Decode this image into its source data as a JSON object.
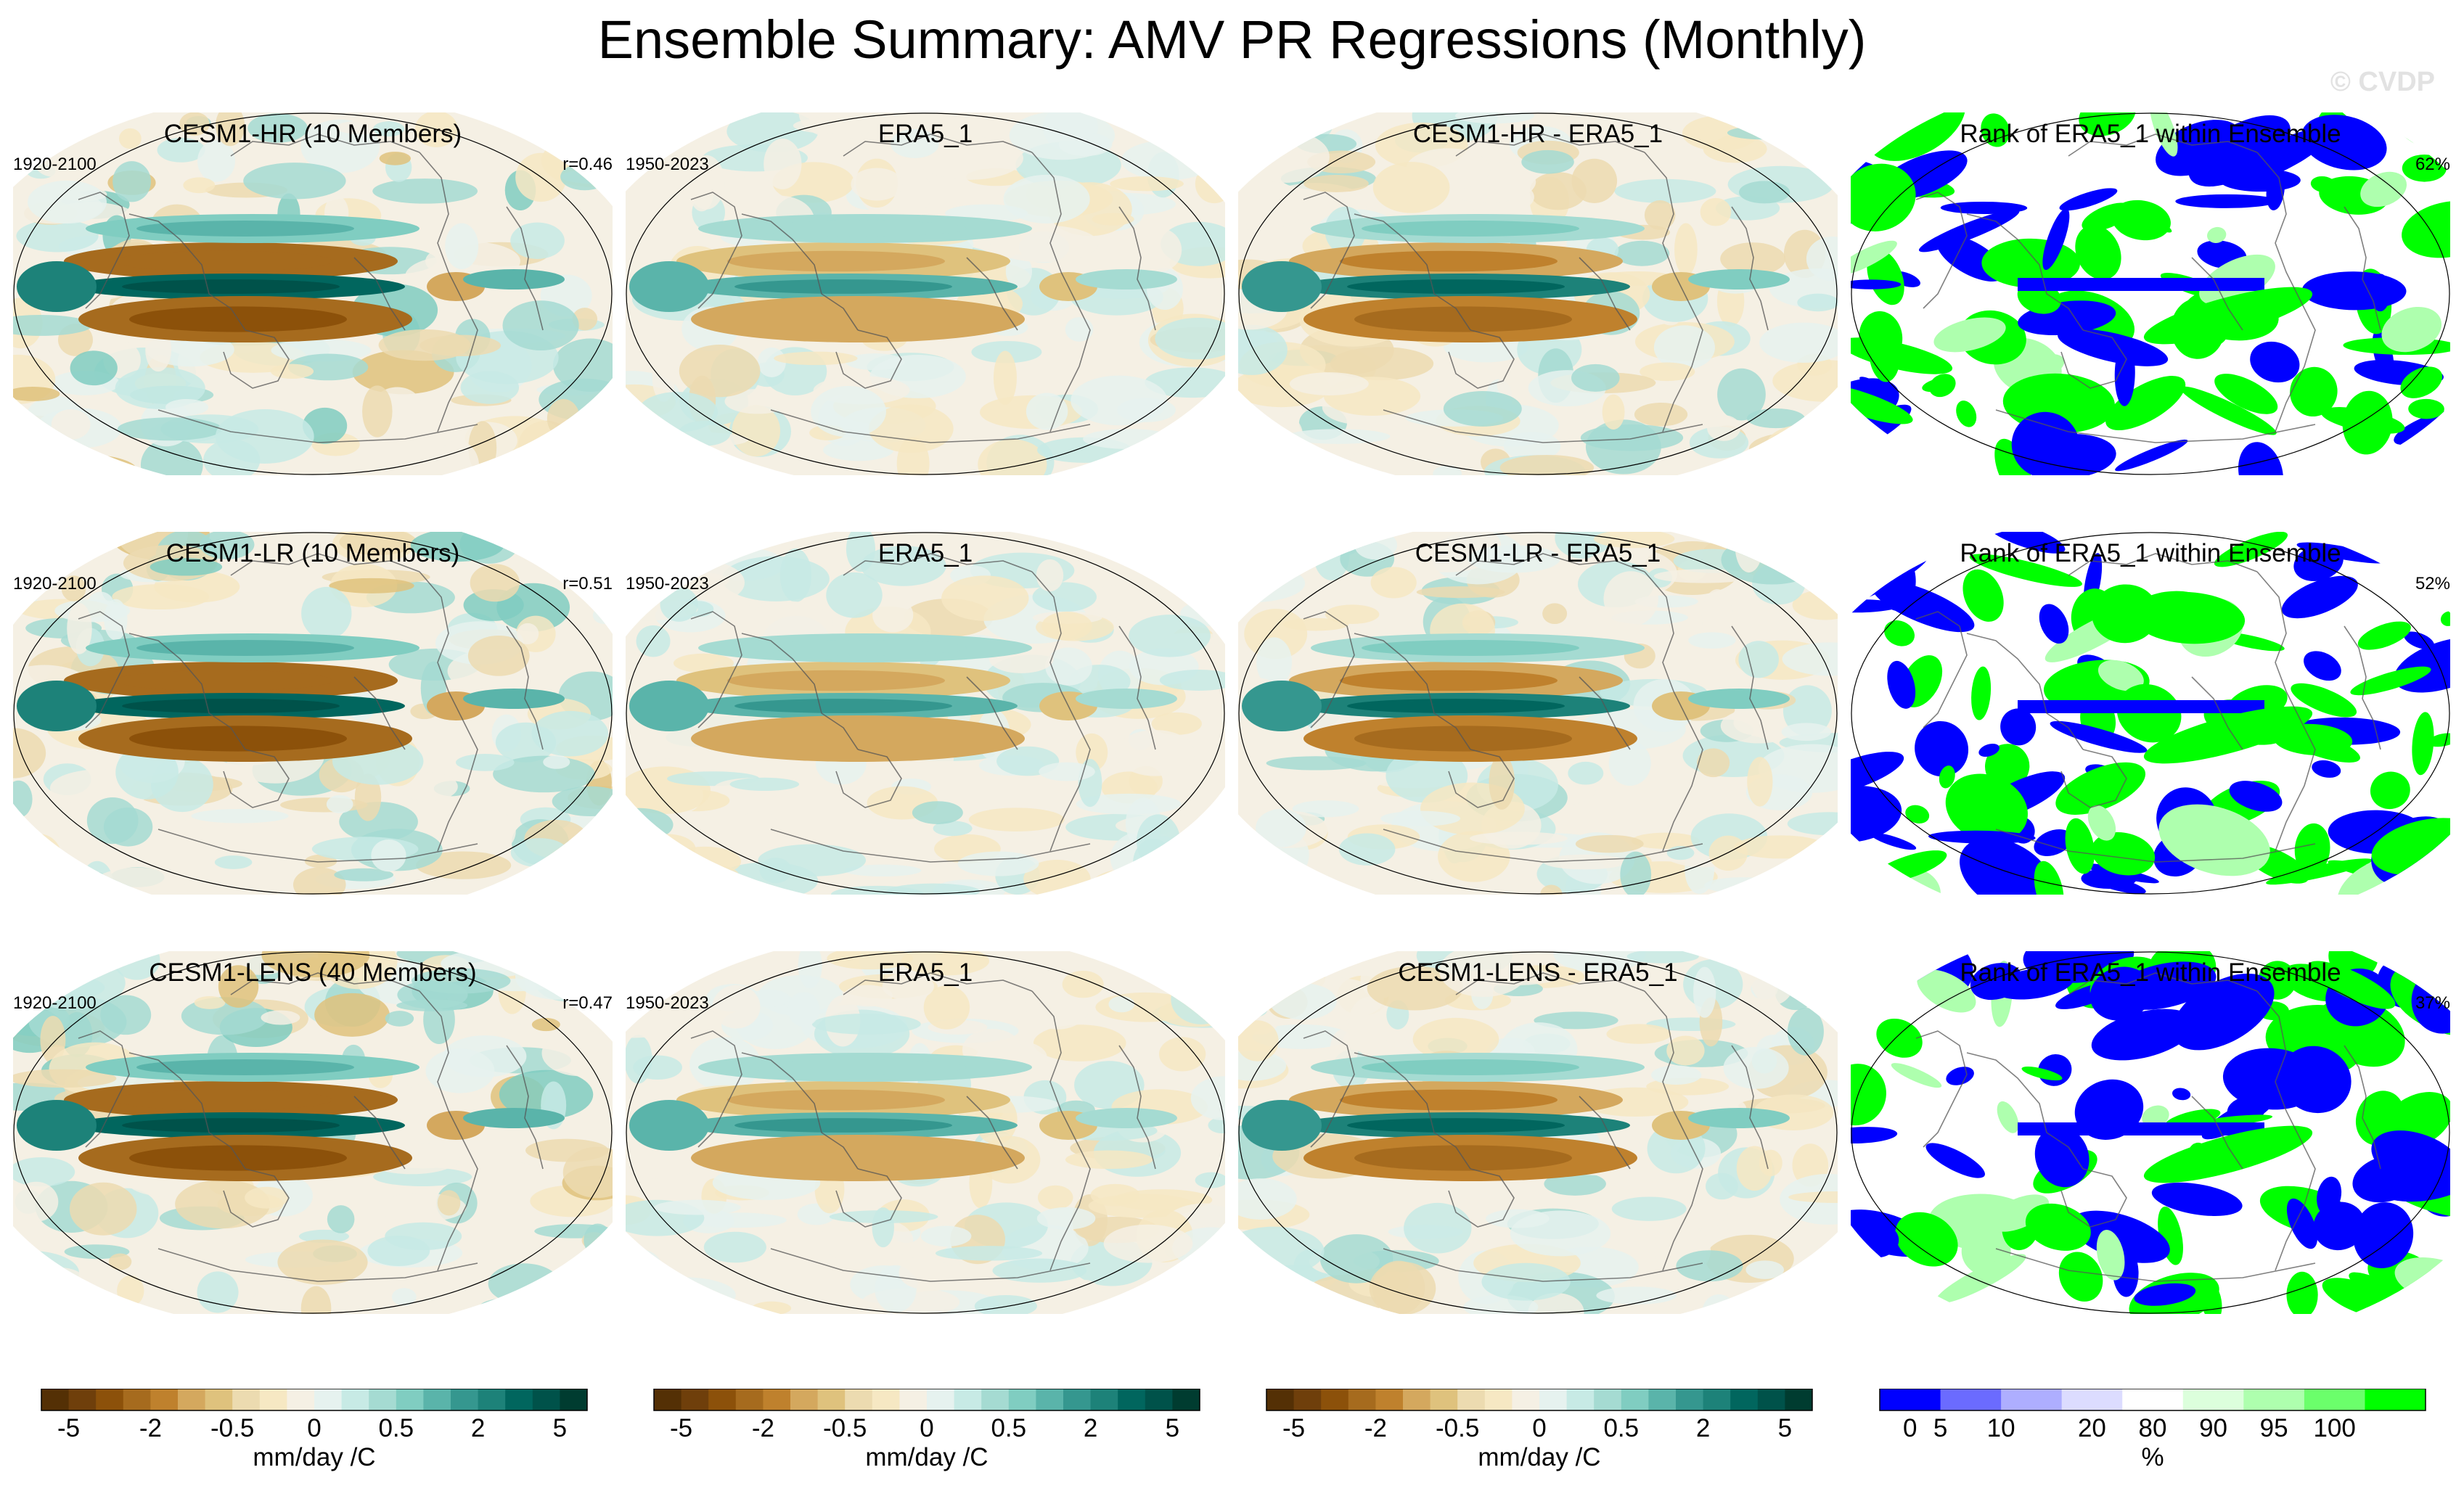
{
  "title": "Ensemble Summary: AMV PR Regressions (Monthly)",
  "watermark": "© CVDP",
  "rows": [
    {
      "model": {
        "title": "CESM1-HR (10 Members)",
        "period": "1920-2100",
        "stat": "r=0.46"
      },
      "obs": {
        "title": "ERA5_1",
        "period": "1950-2023"
      },
      "diff": {
        "title": "CESM1-HR - ERA5_1"
      },
      "rank": {
        "title": "Rank of ERA5_1 within Ensemble",
        "stat": "62%"
      }
    },
    {
      "model": {
        "title": "CESM1-LR (10 Members)",
        "period": "1920-2100",
        "stat": "r=0.51"
      },
      "obs": {
        "title": "ERA5_1",
        "period": "1950-2023"
      },
      "diff": {
        "title": "CESM1-LR - ERA5_1"
      },
      "rank": {
        "title": "Rank of ERA5_1 within Ensemble",
        "stat": "52%"
      }
    },
    {
      "model": {
        "title": "CESM1-LENS (40 Members)",
        "period": "1920-2100",
        "stat": "r=0.47"
      },
      "obs": {
        "title": "ERA5_1",
        "period": "1950-2023"
      },
      "diff": {
        "title": "CESM1-LENS - ERA5_1"
      },
      "rank": {
        "title": "Rank of ERA5_1 within Ensemble",
        "stat": "37%"
      }
    }
  ],
  "chart_data": [
    {
      "type": "colorbar",
      "units": "mm/day /C",
      "tick_labels": [
        "-5",
        "-2",
        "-0.5",
        "0",
        "0.5",
        "2",
        "5"
      ],
      "colors": [
        "#543005",
        "#6f3f0b",
        "#8c510a",
        "#a66b1e",
        "#bf812d",
        "#d4a85e",
        "#dfc27d",
        "#ecdbb0",
        "#f6e8c3",
        "#f5f0e4",
        "#e6f2ef",
        "#c7eae5",
        "#a5dbd2",
        "#80cdc1",
        "#5ab4aa",
        "#35978f",
        "#1d8279",
        "#01665e",
        "#00524a",
        "#003c30"
      ]
    },
    {
      "type": "colorbar",
      "units": "%",
      "tick_labels": [
        "0",
        "5",
        "10",
        "20",
        "80",
        "90",
        "95",
        "100"
      ],
      "colors": [
        "#0000ff",
        "#6b6bff",
        "#aeaeff",
        "#dcdcff",
        "#ffffff",
        "#dcffdc",
        "#aeffae",
        "#6bff6b",
        "#00ff00"
      ]
    }
  ]
}
